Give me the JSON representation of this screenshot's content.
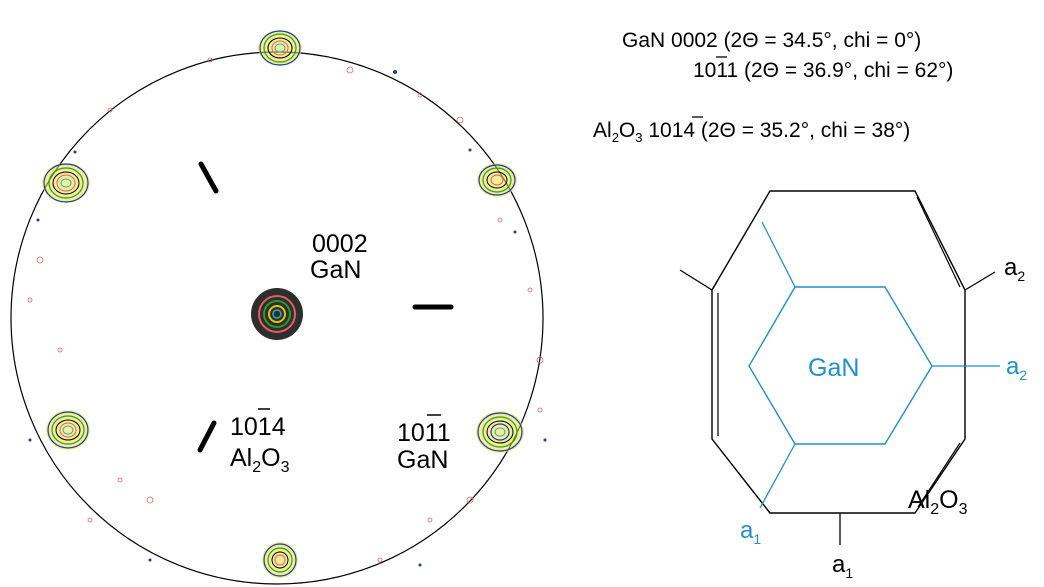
{
  "legend": {
    "line1": "GaN  0002 (2Θ = 34.5°, chi = 0°)",
    "line2": "1011 (2Θ = 36.9°, chi = 62°)",
    "line3_sub_formula": "Al",
    "line3_sub_2": "2",
    "line3_mid": "O",
    "line3_sub_3": "3",
    "line3_rest": "  1014 (2Θ = 35.2°, chi = 38°)"
  },
  "pole_figure": {
    "center_label_line1": "0002",
    "center_label_line2": "GaN",
    "al_label_line1": "1014",
    "al_label_line2_a": "Al",
    "al_label_line2_sub2": "2",
    "al_label_line2_b": "O",
    "al_label_line2_sub3": "3",
    "gan_label_line1": "1011",
    "gan_label_line2": "GaN"
  },
  "hex_diagram": {
    "gan_label": "GaN",
    "al2o3_a": "Al",
    "al2o3_sub2": "2",
    "al2o3_b": "O",
    "al2o3_sub3": "3",
    "a2_black": "a",
    "a2_black_sub": "2",
    "a2_blue": "a",
    "a2_blue_sub": "2",
    "a1_blue": "a",
    "a1_blue_sub": "1",
    "a1_black": "a",
    "a1_black_sub": "1"
  },
  "colors": {
    "blue": "#1e8fd0",
    "black": "#000000",
    "contour_red": "#e06060",
    "contour_green": "#2a9a2a",
    "contour_yellow": "#d8c800",
    "contour_blue": "#1a3aa8",
    "contour_cyan": "#2aa8c8"
  }
}
